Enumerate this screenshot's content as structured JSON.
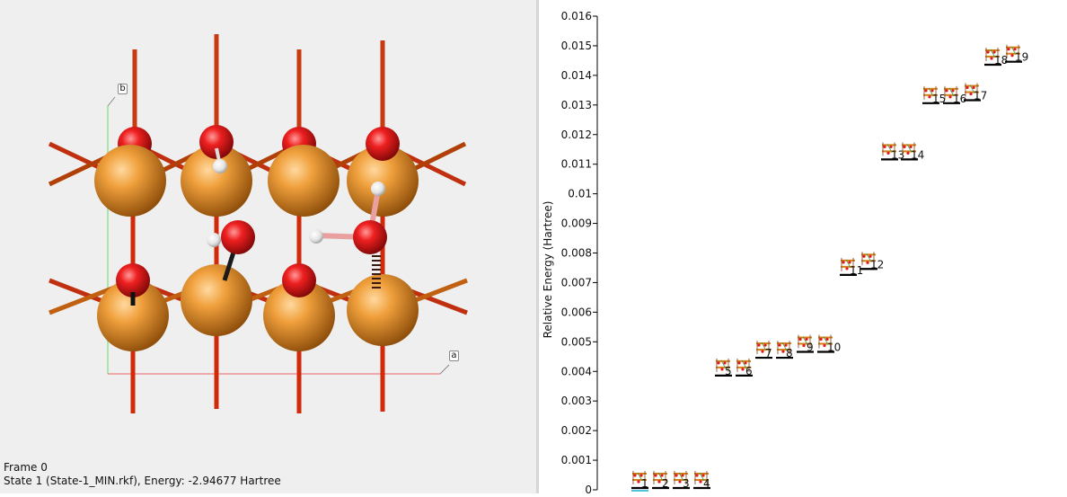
{
  "viewer": {
    "frame_label": "Frame 0",
    "state_label": "State 1 (State-1_MIN.rkf), Energy: -2.94677 Hartree",
    "axis_a_label": "a",
    "axis_b_label": "b",
    "colors": {
      "background": "#efefef",
      "atom_large": "#e8902a",
      "atom_oxygen": "#e41a1a",
      "atom_hydrogen": "#f4f4f4",
      "bond": "#d9481a",
      "axis_b": "#66dd66",
      "axis_a": "#ee6666"
    }
  },
  "chart_data": {
    "type": "scatter",
    "title": "",
    "xlabel": "",
    "ylabel": "Relative Energy (Hartree)",
    "ylim": [
      0,
      0.016
    ],
    "yticks": [
      "0",
      "0.001",
      "0.002",
      "0.003",
      "0.004",
      "0.005",
      "0.006",
      "0.007",
      "0.008",
      "0.009",
      "0.01",
      "0.011",
      "0.012",
      "0.013",
      "0.014",
      "0.015",
      "0.016"
    ],
    "grid": false,
    "states": [
      {
        "label": "1",
        "energy": 0.0
      },
      {
        "label": "2",
        "energy": 0.0
      },
      {
        "label": "3",
        "energy": 0.0
      },
      {
        "label": "4",
        "energy": 0.0
      },
      {
        "label": "5",
        "energy": 0.0038
      },
      {
        "label": "6",
        "energy": 0.0038
      },
      {
        "label": "7",
        "energy": 0.0044
      },
      {
        "label": "8",
        "energy": 0.0044
      },
      {
        "label": "9",
        "energy": 0.0046
      },
      {
        "label": "10",
        "energy": 0.0046
      },
      {
        "label": "11",
        "energy": 0.0072
      },
      {
        "label": "12",
        "energy": 0.0074
      },
      {
        "label": "13",
        "energy": 0.0111
      },
      {
        "label": "14",
        "energy": 0.0111
      },
      {
        "label": "15",
        "energy": 0.013
      },
      {
        "label": "16",
        "energy": 0.013
      },
      {
        "label": "17",
        "energy": 0.0131
      },
      {
        "label": "18",
        "energy": 0.0143
      },
      {
        "label": "19",
        "energy": 0.0144
      }
    ],
    "selected_state": "1",
    "colors": {
      "level_line": "#000000",
      "selected_marker": "#4fc3d9",
      "axis": "#000000"
    }
  }
}
